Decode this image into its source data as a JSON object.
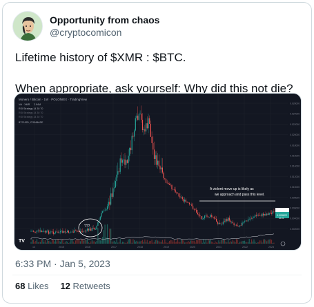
{
  "author": {
    "display_name": "Opportunity from chaos",
    "handle": "@cryptocomicon"
  },
  "tweet": {
    "line1": "Lifetime history of $XMR : $BTC.",
    "line2": "When appropriate, ask yourself: Why did this not die?"
  },
  "chart": {
    "header_title": "Monero / Bitcoin · 1W · POLONIEX · TradingView",
    "indicator1": "Vol · XMR",
    "indicator1_value": "2.94M",
    "indicator2": "RSI Strategy 14 30 70",
    "indicator3": "RSI Strategy 14 30 70",
    "indicator4": "RSI Strategy 14 30 70",
    "indicator5": "BTCUSD, COINBASE",
    "annotation": "A violent move up is likely as we approach and pass this level.",
    "question": "???",
    "price_tag": "0.005822",
    "price_tag2": "06:01",
    "y_ticks": [
      "0.026000",
      "0.024000",
      "0.022000",
      "0.020000",
      "0.018000",
      "0.016000",
      "0.014000",
      "0.012000",
      "0.010000",
      "0.008000",
      "0.006000",
      "0.004000",
      "0.002000"
    ],
    "x_ticks": [
      "14",
      "2015",
      "2016",
      "2017",
      "2018",
      "2019",
      "2020",
      "2021",
      "2022",
      "2023"
    ],
    "colors": {
      "up": "#26a69a",
      "down": "#ef5350",
      "bg": "#131722",
      "annotation": "#ffffff",
      "level": "#ffffff"
    }
  },
  "timestamp": "6:33 PM · Jan 5, 2023",
  "stats": {
    "likes_count": "68",
    "likes_label": "Likes",
    "retweets_count": "12",
    "retweets_label": "Retweets"
  }
}
